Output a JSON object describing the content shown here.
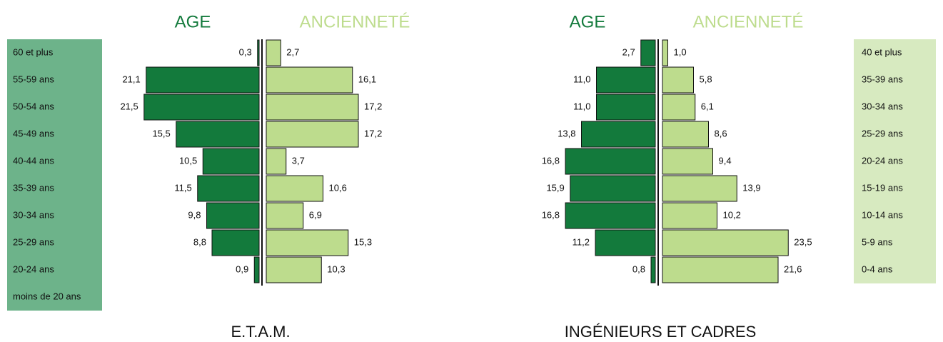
{
  "chart_data": [
    {
      "type": "pyramid",
      "title": "E.T.A.M.",
      "categories": [
        "60 et plus",
        "55-59 ans",
        "50-54 ans",
        "45-49 ans",
        "40-44 ans",
        "35-39 ans",
        "30-34 ans",
        "25-29 ans",
        "20-24 ans",
        "moins de 20 ans"
      ],
      "series": [
        {
          "name": "AGE",
          "color": "#137a3c",
          "values": [
            0.3,
            21.1,
            21.5,
            15.5,
            10.5,
            11.5,
            9.8,
            8.8,
            0.9,
            null
          ],
          "value_labels": [
            "0,3",
            "21,1",
            "21,5",
            "15,5",
            "10,5",
            "11,5",
            "9,8",
            "8,8",
            "0,9",
            null
          ]
        },
        {
          "name": "ANCIENNETÉ",
          "color": "#bddc8d",
          "values": [
            2.7,
            16.1,
            17.2,
            17.2,
            3.7,
            10.6,
            6.9,
            15.3,
            10.3,
            null
          ],
          "value_labels": [
            "2,7",
            "16,1",
            "17,2",
            "17,2",
            "3,7",
            "10,6",
            "6,9",
            "15,3",
            "10,3",
            null
          ]
        }
      ]
    },
    {
      "type": "pyramid",
      "title": "INGÉNIEURS ET CADRES",
      "categories": [
        "40 et plus",
        "35-39 ans",
        "30-34 ans",
        "25-29 ans",
        "20-24 ans",
        "15-19 ans",
        "10-14 ans",
        "5-9 ans",
        "0-4 ans"
      ],
      "series": [
        {
          "name": "AGE",
          "color": "#137a3c",
          "values": [
            2.7,
            11.0,
            11.0,
            13.8,
            16.8,
            15.9,
            16.8,
            11.2,
            0.8
          ],
          "value_labels": [
            "2,7",
            "11,0",
            "11,0",
            "13,8",
            "16,8",
            "15,9",
            "16,8",
            "11,2",
            "0,8"
          ]
        },
        {
          "name": "ANCIENNETÉ",
          "color": "#bddc8d",
          "values": [
            1.0,
            5.8,
            6.1,
            8.6,
            9.4,
            13.9,
            10.2,
            23.5,
            21.6
          ],
          "value_labels": [
            "1,0",
            "5,8",
            "6,1",
            "8,6",
            "9,4",
            "13,9",
            "10,2",
            "23,5",
            "21,6"
          ]
        }
      ]
    }
  ]
}
